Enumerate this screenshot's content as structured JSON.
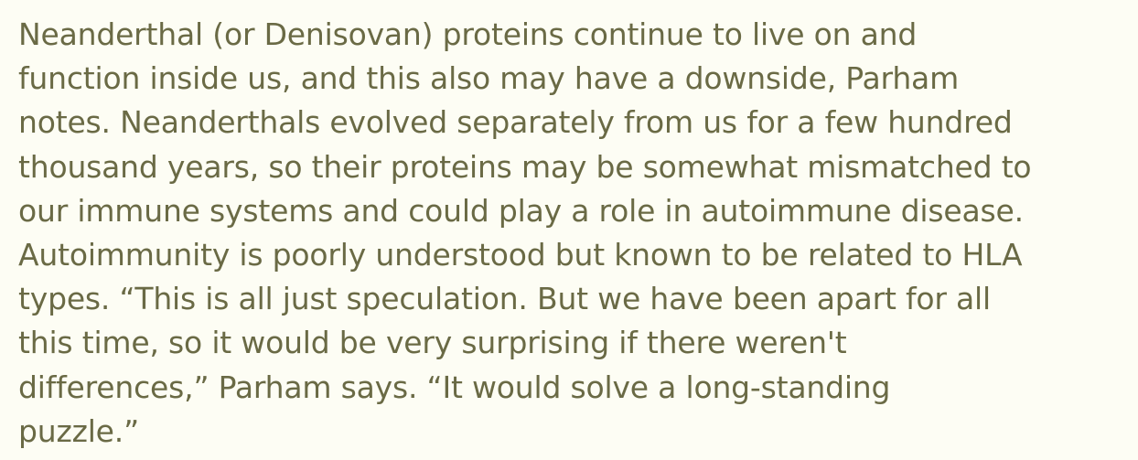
{
  "paragraph": {
    "lines": [
      "Neanderthal (or Denisovan) proteins continue to live on and",
      "function inside us, and this also may have a downside, Parham",
      "notes. Neanderthals evolved separately from us for a few hundred",
      "thousand years, so their proteins may be somewhat mismatched to",
      "our immune systems and could play a role in autoimmune disease.",
      "Autoimmunity is poorly understood but known to be related to HLA",
      "types. “This is all just speculation. But we have been apart for all",
      "this time, so it would be very surprising if there weren't",
      "differences,” Parham says. “It would solve a long-standing",
      "puzzle.”"
    ]
  }
}
